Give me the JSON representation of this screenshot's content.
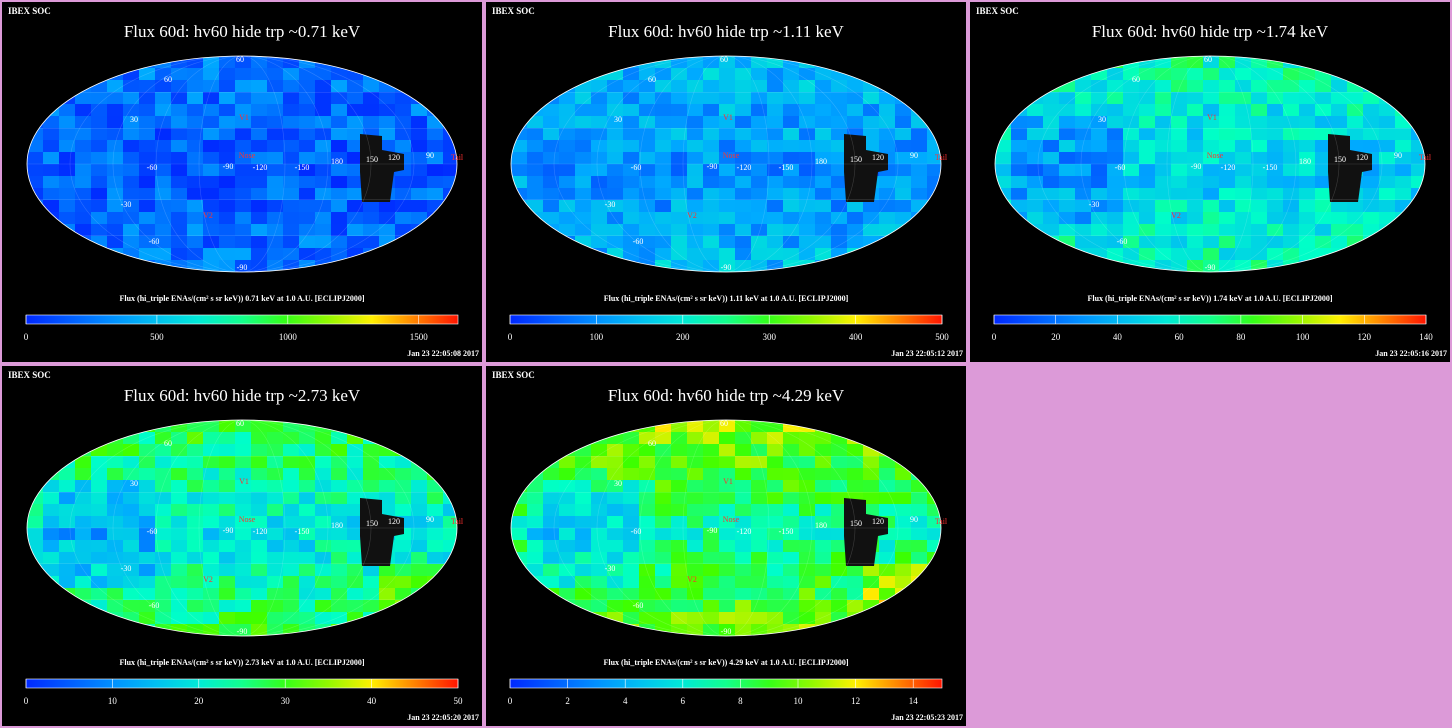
{
  "panels": [
    {
      "org": "IBEX SOC",
      "title": "Flux   60d: hv60 hide trp ~0.71 keV",
      "colorbar_label": "Flux (hi_triple ENAs/(cm² s sr keV))  0.71 keV at 1.0 A.U. [ECLIPJ2000]",
      "timestamp": "Jan 23 22:05:08 2017",
      "cb_ticks": [
        "0",
        "500",
        "1000",
        "1500"
      ],
      "cb_tick_values": [
        0,
        500,
        1000,
        1500
      ],
      "cb_max": 1650,
      "level": 0.1
    },
    {
      "org": "IBEX SOC",
      "title": "Flux   60d: hv60 hide trp ~1.11 keV",
      "colorbar_label": "Flux (hi_triple ENAs/(cm² s sr keV))  1.11 keV at 1.0 A.U. [ECLIPJ2000]",
      "timestamp": "Jan 23 22:05:12 2017",
      "cb_ticks": [
        "0",
        "100",
        "200",
        "300",
        "400",
        "500"
      ],
      "cb_tick_values": [
        0,
        100,
        200,
        300,
        400,
        500
      ],
      "cb_max": 500,
      "level": 0.2
    },
    {
      "org": "IBEX SOC",
      "title": "Flux   60d: hv60 hide trp ~1.74 keV",
      "colorbar_label": "Flux (hi_triple ENAs/(cm² s sr keV))  1.74 keV at 1.0 A.U. [ECLIPJ2000]",
      "timestamp": "Jan 23 22:05:16 2017",
      "cb_ticks": [
        "0",
        "20",
        "40",
        "60",
        "80",
        "100",
        "120",
        "140"
      ],
      "cb_tick_values": [
        0,
        20,
        40,
        60,
        80,
        100,
        120,
        140
      ],
      "cb_max": 140,
      "level": 0.32
    },
    {
      "org": "IBEX SOC",
      "title": "Flux   60d: hv60 hide trp ~2.73 keV",
      "colorbar_label": "Flux (hi_triple ENAs/(cm² s sr keV))  2.73 keV at 1.0 A.U. [ECLIPJ2000]",
      "timestamp": "Jan 23 22:05:20 2017",
      "cb_ticks": [
        "0",
        "10",
        "20",
        "30",
        "40",
        "50"
      ],
      "cb_tick_values": [
        0,
        10,
        20,
        30,
        40,
        50
      ],
      "cb_max": 50,
      "level": 0.38
    },
    {
      "org": "IBEX SOC",
      "title": "Flux   60d: hv60 hide trp ~4.29 keV",
      "colorbar_label": "Flux (hi_triple ENAs/(cm² s sr keV))  4.29 keV at 1.0 A.U. [ECLIPJ2000]",
      "timestamp": "Jan 23 22:05:23 2017",
      "cb_ticks": [
        "0",
        "2",
        "4",
        "6",
        "8",
        "10",
        "12",
        "14"
      ],
      "cb_tick_values": [
        0,
        2,
        4,
        6,
        8,
        10,
        12,
        14
      ],
      "cb_max": 15,
      "level": 0.46
    }
  ],
  "map_labels": [
    {
      "text": "V1",
      "color": "#ff3030"
    },
    {
      "text": "V2",
      "color": "#ff3030"
    },
    {
      "text": "Nose",
      "color": "#ff3030"
    },
    {
      "text": "Tail",
      "color": "#ff3030"
    },
    {
      "text": "-90",
      "color": "#ffffff"
    },
    {
      "text": "-120",
      "color": "#ffffff"
    },
    {
      "text": "-150",
      "color": "#ffffff"
    },
    {
      "text": "180",
      "color": "#ffffff"
    },
    {
      "text": "150",
      "color": "#ffffff"
    },
    {
      "text": "120",
      "color": "#ffffff"
    },
    {
      "text": "90",
      "color": "#ffffff"
    },
    {
      "text": "-60",
      "color": "#ffffff"
    },
    {
      "text": "60",
      "color": "#ffffff"
    },
    {
      "text": "30",
      "color": "#ffffff"
    },
    {
      "text": "-30",
      "color": "#ffffff"
    },
    {
      "text": "-60",
      "color": "#ffffff"
    },
    {
      "text": "60",
      "color": "#ffffff"
    },
    {
      "text": "-90",
      "color": "#ffffff"
    }
  ],
  "chart_data": [
    {
      "type": "heatmap",
      "projection": "Mollweide sky map",
      "title": "Flux   60d: hv60 hide trp ~0.71 keV",
      "energy_keV": 0.71,
      "colorbar_range": [
        0,
        1650
      ],
      "colorbar_ticks": [
        0,
        500,
        1000,
        1500
      ],
      "colormap": "blue-cyan-green-yellow-red"
    },
    {
      "type": "heatmap",
      "projection": "Mollweide sky map",
      "title": "Flux   60d: hv60 hide trp ~1.11 keV",
      "energy_keV": 1.11,
      "colorbar_range": [
        0,
        500
      ],
      "colorbar_ticks": [
        0,
        100,
        200,
        300,
        400,
        500
      ],
      "colormap": "blue-cyan-green-yellow-red"
    },
    {
      "type": "heatmap",
      "projection": "Mollweide sky map",
      "title": "Flux   60d: hv60 hide trp ~1.74 keV",
      "energy_keV": 1.74,
      "colorbar_range": [
        0,
        140
      ],
      "colorbar_ticks": [
        0,
        20,
        40,
        60,
        80,
        100,
        120,
        140
      ],
      "colormap": "blue-cyan-green-yellow-red"
    },
    {
      "type": "heatmap",
      "projection": "Mollweide sky map",
      "title": "Flux   60d: hv60 hide trp ~2.73 keV",
      "energy_keV": 2.73,
      "colorbar_range": [
        0,
        50
      ],
      "colorbar_ticks": [
        0,
        10,
        20,
        30,
        40,
        50
      ],
      "colormap": "blue-cyan-green-yellow-red"
    },
    {
      "type": "heatmap",
      "projection": "Mollweide sky map",
      "title": "Flux   60d: hv60 hide trp ~4.29 keV",
      "energy_keV": 4.29,
      "colorbar_range": [
        0,
        15
      ],
      "colorbar_ticks": [
        0,
        2,
        4,
        6,
        8,
        10,
        12,
        14
      ],
      "colormap": "blue-cyan-green-yellow-red"
    }
  ]
}
